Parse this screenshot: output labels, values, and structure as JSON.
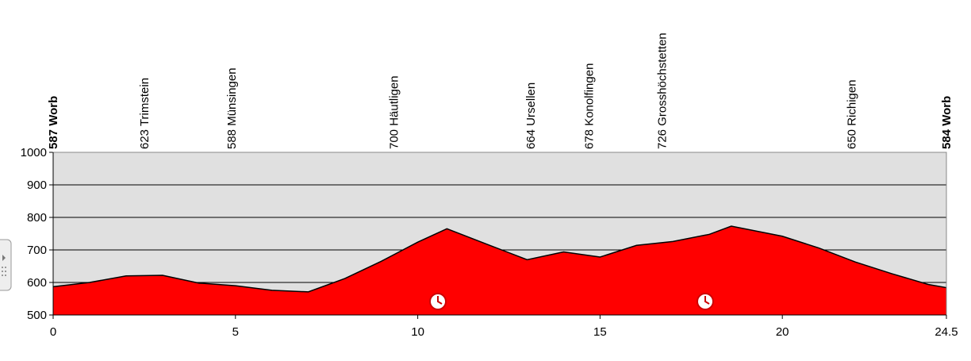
{
  "chart_data": {
    "type": "area",
    "color": "#ff0000",
    "background": "#e0e0e0",
    "x": [
      0,
      1,
      2,
      3,
      4,
      5,
      6,
      7,
      8,
      9,
      10,
      10.8,
      12,
      13,
      14,
      15,
      16,
      17,
      18,
      18.6,
      20,
      21,
      22,
      23,
      24,
      24.5
    ],
    "values": [
      587,
      600,
      620,
      622,
      598,
      590,
      576,
      571,
      612,
      665,
      724,
      765,
      713,
      670,
      694,
      678,
      714,
      726,
      748,
      773,
      742,
      706,
      663,
      627,
      594,
      584
    ],
    "xlim": [
      0,
      24.5
    ],
    "xticks": [
      0,
      5,
      10,
      15,
      20,
      24.5
    ],
    "ylim": [
      500,
      1000
    ],
    "yticks": [
      500,
      600,
      700,
      800,
      900,
      1000
    ],
    "grid": true,
    "waypoints": [
      {
        "label": "587 Worb",
        "x": 0,
        "bold": true
      },
      {
        "label": "623 Trimstein",
        "x": 2.5,
        "bold": false
      },
      {
        "label": "588 Münsingen",
        "x": 4.9,
        "bold": false
      },
      {
        "label": "700 Häutligen",
        "x": 9.35,
        "bold": false
      },
      {
        "label": "664 Ursellen",
        "x": 13.1,
        "bold": false
      },
      {
        "label": "678 Konolfingen",
        "x": 14.7,
        "bold": false
      },
      {
        "label": "726 Grosshöchstetten",
        "x": 16.7,
        "bold": false
      },
      {
        "label": "650 Richigen",
        "x": 21.9,
        "bold": false
      },
      {
        "label": "584 Worb",
        "x": 24.5,
        "bold": true
      }
    ]
  }
}
